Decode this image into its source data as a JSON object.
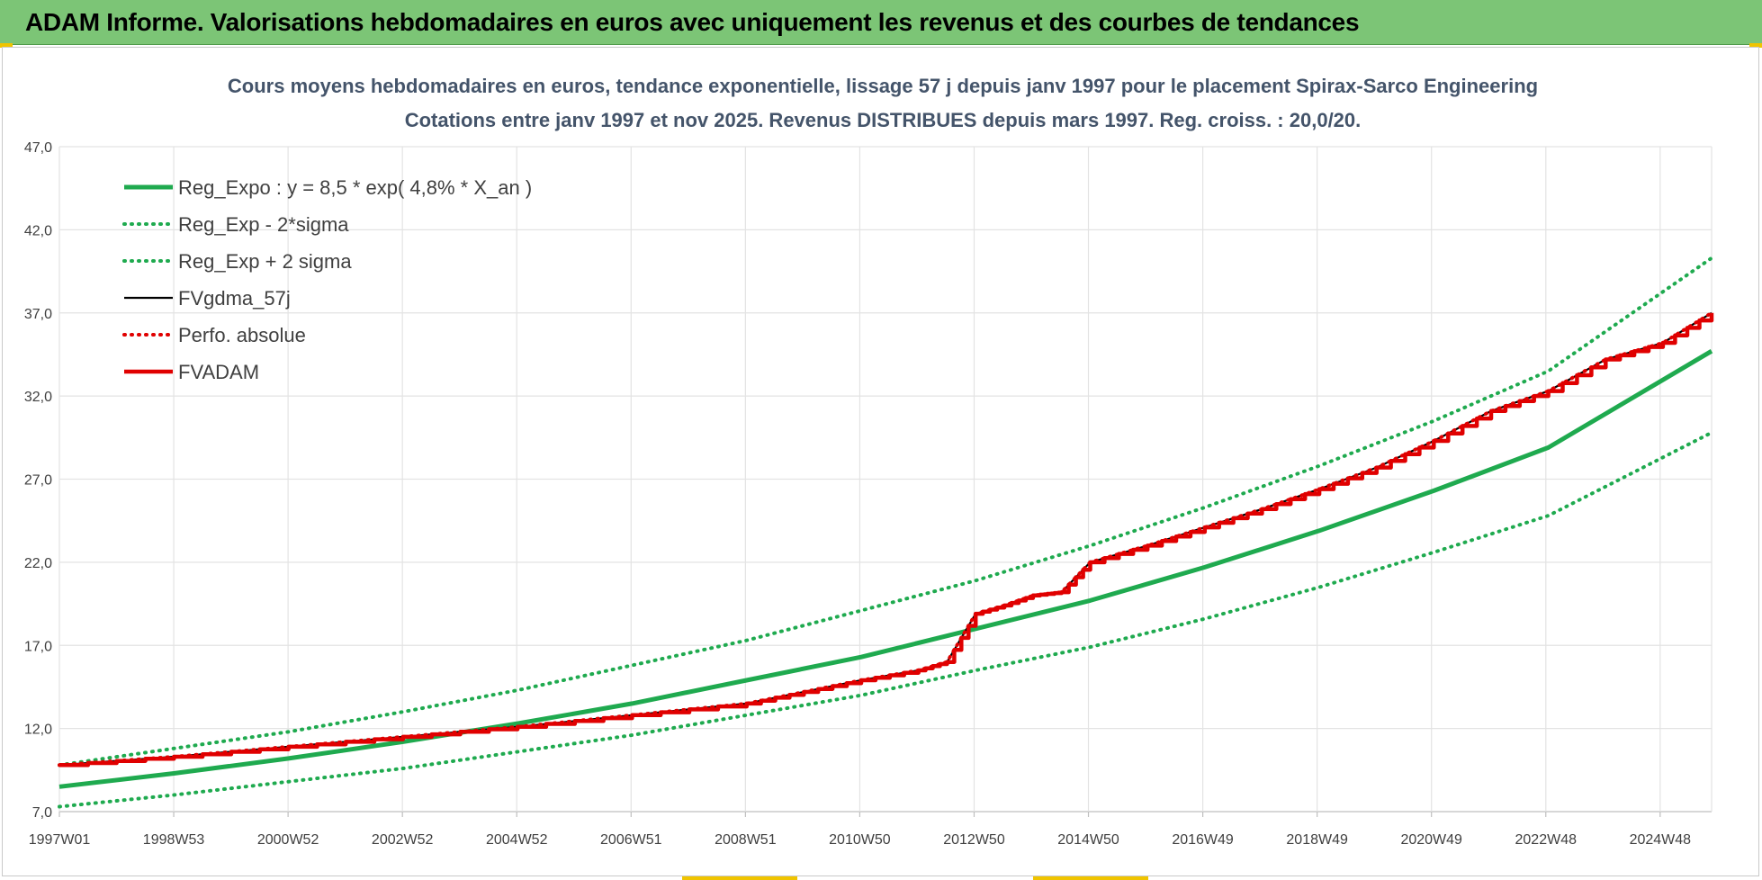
{
  "banner": {
    "text": "ADAM Informe. Valorisations hebdomadaires en euros avec uniquement les revenus et des courbes de tendances"
  },
  "colors": {
    "banner_bg": "#7cc576",
    "trend": "#1faa4f",
    "fv57": "#000000",
    "perfo": "#e00000",
    "fvadam": "#e00000"
  },
  "chart_data": {
    "type": "line",
    "title": "Cours moyens hebdomadaires en euros, tendance exponentielle, lissage 57 j depuis janv 1997 pour le placement Spirax-Sarco Engineering",
    "subtitle": "Cotations entre janv 1997 et nov 2025. Revenus DISTRIBUES depuis mars 1997. Reg. croiss. : 20,0/20.",
    "xlabel": "",
    "ylabel": "",
    "ylim": [
      7,
      47
    ],
    "y_ticks": [
      "7,0",
      "12,0",
      "17,0",
      "22,0",
      "27,0",
      "32,0",
      "37,0",
      "42,0",
      "47,0"
    ],
    "x_ticks": [
      "1997W01",
      "1998W53",
      "2000W52",
      "2002W52",
      "2004W52",
      "2006W51",
      "2008W51",
      "2010W50",
      "2012W50",
      "2014W50",
      "2016W49",
      "2018W49",
      "2020W49",
      "2022W48",
      "2024W48"
    ],
    "x_range_years": [
      1997.0,
      2025.85
    ],
    "grid": true,
    "legend_position": "top-left",
    "series": [
      {
        "name": "Reg_Expo : y = 8,5 * exp( 4,8% *  X_an )",
        "style": "solid-thick",
        "color": "#1faa4f",
        "x": [
          1997,
          1999,
          2001,
          2003,
          2005,
          2007,
          2009,
          2011,
          2013,
          2015,
          2017,
          2019,
          2021,
          2023,
          2025.85
        ],
        "y": [
          8.5,
          9.3,
          10.2,
          11.2,
          12.3,
          13.5,
          14.9,
          16.3,
          18.0,
          19.7,
          21.7,
          23.9,
          26.3,
          28.9,
          34.7
        ]
      },
      {
        "name": "Reg_Exp - 2*sigma",
        "style": "dotted",
        "color": "#1faa4f",
        "x": [
          1997,
          1999,
          2001,
          2003,
          2005,
          2007,
          2009,
          2011,
          2013,
          2015,
          2017,
          2019,
          2021,
          2023,
          2025.85
        ],
        "y": [
          7.3,
          8.0,
          8.8,
          9.6,
          10.6,
          11.6,
          12.8,
          14.0,
          15.5,
          16.9,
          18.6,
          20.5,
          22.6,
          24.8,
          29.8
        ]
      },
      {
        "name": "Reg_Exp + 2 sigma",
        "style": "dotted",
        "color": "#1faa4f",
        "x": [
          1997,
          1999,
          2001,
          2003,
          2005,
          2007,
          2009,
          2011,
          2013,
          2015,
          2017,
          2019,
          2021,
          2023,
          2025.85
        ],
        "y": [
          9.8,
          10.8,
          11.8,
          13.0,
          14.3,
          15.8,
          17.3,
          19.1,
          20.9,
          23.0,
          25.3,
          27.8,
          30.5,
          33.5,
          40.3
        ]
      },
      {
        "name": "FVgdma_57j",
        "style": "solid-thin",
        "color": "#000000",
        "x": [
          1997,
          1999,
          2001,
          2003,
          2005,
          2007,
          2009,
          2010,
          2011,
          2012,
          2012.5,
          2013,
          2013.5,
          2014,
          2014.5,
          2015,
          2016,
          2017,
          2018,
          2019,
          2020,
          2021,
          2022,
          2023,
          2024,
          2025,
          2025.85
        ],
        "y": [
          9.8,
          10.3,
          10.9,
          11.5,
          12.1,
          12.8,
          13.5,
          14.2,
          14.9,
          15.5,
          16.0,
          18.9,
          19.4,
          20.0,
          20.2,
          22.0,
          23.0,
          24.1,
          25.2,
          26.4,
          27.7,
          29.3,
          31.1,
          32.3,
          34.2,
          35.2,
          37.0
        ]
      },
      {
        "name": "Perfo. absolue",
        "style": "dotted",
        "color": "#e00000",
        "x": [
          1997,
          1999,
          2001,
          2003,
          2005,
          2007,
          2009,
          2010,
          2011,
          2012,
          2012.5,
          2013,
          2013.5,
          2014,
          2014.5,
          2015,
          2016,
          2017,
          2018,
          2019,
          2020,
          2021,
          2022,
          2023,
          2024,
          2025,
          2025.85
        ],
        "y": [
          9.8,
          10.3,
          10.9,
          11.5,
          12.1,
          12.8,
          13.5,
          14.2,
          14.9,
          15.5,
          16.0,
          18.9,
          19.4,
          20.0,
          20.2,
          22.0,
          23.0,
          24.1,
          25.2,
          26.4,
          27.7,
          29.3,
          31.1,
          32.3,
          34.2,
          35.2,
          37.0
        ]
      },
      {
        "name": "FVADAM",
        "style": "step-thick",
        "color": "#e00000",
        "x": [
          1997,
          1999,
          2001,
          2003,
          2005,
          2007,
          2009,
          2010,
          2011,
          2012,
          2012.5,
          2013,
          2013.5,
          2014,
          2014.5,
          2015,
          2016,
          2017,
          2018,
          2019,
          2020,
          2021,
          2022,
          2023,
          2024,
          2025,
          2025.85
        ],
        "y": [
          9.8,
          10.3,
          10.9,
          11.5,
          12.1,
          12.8,
          13.5,
          14.2,
          14.9,
          15.5,
          16.0,
          18.9,
          19.4,
          20.0,
          20.2,
          22.0,
          23.0,
          24.1,
          25.2,
          26.4,
          27.7,
          29.3,
          31.1,
          32.3,
          34.2,
          35.2,
          37.0
        ]
      }
    ]
  }
}
